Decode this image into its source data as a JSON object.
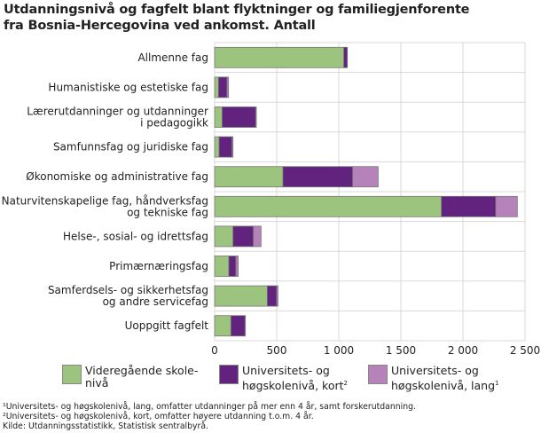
{
  "chart_data": {
    "type": "bar",
    "orientation": "horizontal",
    "stacked": true,
    "title": [
      "Utdanningsnivå og fagfelt blant flyktninger og familiegjenforente",
      "fra Bosnia-Hercegovina ved ankomst. Antall"
    ],
    "categories": [
      [
        "Allmenne fag"
      ],
      [
        "Humanistiske og estetiske fag"
      ],
      [
        "Lærerutdanninger og utdanninger",
        "i pedagogikk"
      ],
      [
        "Samfunnsfag og juridiske fag"
      ],
      [
        "Økonomiske og administrative fag"
      ],
      [
        "Naturvitenskapelige fag, håndverksfag",
        "og tekniske fag"
      ],
      [
        "Helse-, sosial- og idrettsfag"
      ],
      [
        "Primærnæringsfag"
      ],
      [
        "Samferdsels- og sikkerhetsfag",
        "og andre servicefag"
      ],
      [
        "Uoppgitt fagfelt"
      ]
    ],
    "series": [
      {
        "name": "Videregående skole-nivå",
        "legend": [
          "Videregående skole-",
          "nivå"
        ],
        "sup": "",
        "color": "#9dc47f",
        "values": [
          1040,
          31,
          60,
          36,
          550,
          1826,
          148,
          114,
          424,
          131
        ]
      },
      {
        "name": "Universitets- og høgskolenivå, kort",
        "legend": [
          "Universitets- og",
          "høgskolenivå, kort"
        ],
        "sup": "2",
        "color": "#62237e",
        "values": [
          29,
          69,
          271,
          104,
          562,
          438,
          164,
          57,
          76,
          114
        ]
      },
      {
        "name": "Universitets- og høgskolenivå, lang",
        "legend": [
          "Universitets- og",
          "høgskolenivå, lang"
        ],
        "sup": "1",
        "color": "#b583b9",
        "values": [
          0,
          12,
          5,
          8,
          205,
          174,
          62,
          19,
          10,
          3
        ]
      }
    ],
    "xlim": [
      0,
      2500
    ],
    "xticks": [
      0,
      500,
      1000,
      1500,
      2000,
      2500
    ],
    "xtick_labels": [
      "0",
      "500",
      "1 000",
      "1 500",
      "2 000",
      "2 500"
    ],
    "grid": true,
    "legend_position": "bottom"
  },
  "footnotes": [
    "¹Universitets- og høgskolenivå, lang, omfatter utdanninger på mer enn 4 år, samt forskerutdanning.",
    "²Universitets- og høgskolenivå, kort, omfatter høyere utdanning t.o.m. 4 år.",
    "Kilde: Utdanningsstatistikk, Statistisk sentralbyrå."
  ]
}
